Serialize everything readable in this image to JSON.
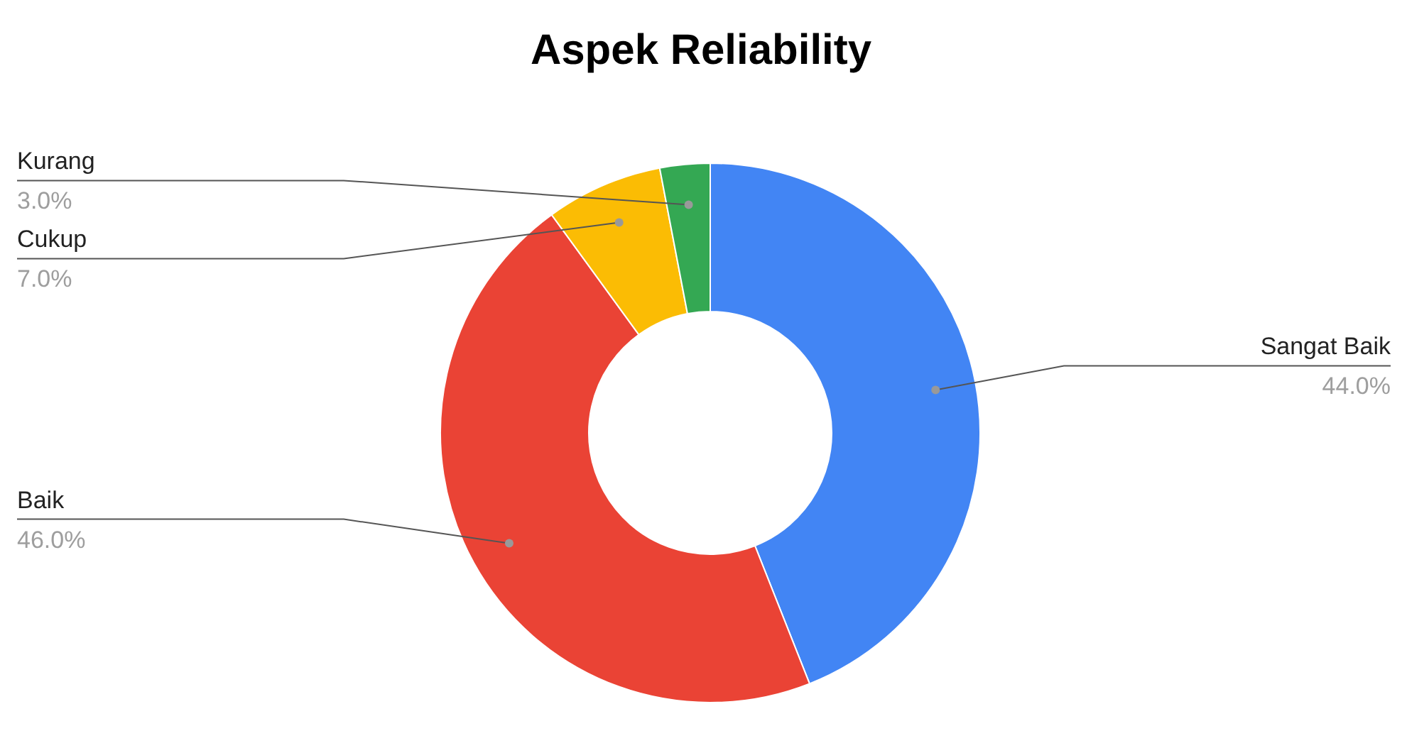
{
  "chart_data": {
    "type": "donut",
    "title": "Aspek Reliability",
    "categories": [
      "Sangat Baik",
      "Baik",
      "Cukup",
      "Kurang"
    ],
    "values": [
      44,
      46,
      7,
      3
    ],
    "colors": [
      "#4285f4",
      "#ea4335",
      "#fbbc04",
      "#34a853"
    ],
    "value_labels": [
      "44.0%",
      "46.0%",
      "7.0%",
      "3.0%"
    ]
  }
}
